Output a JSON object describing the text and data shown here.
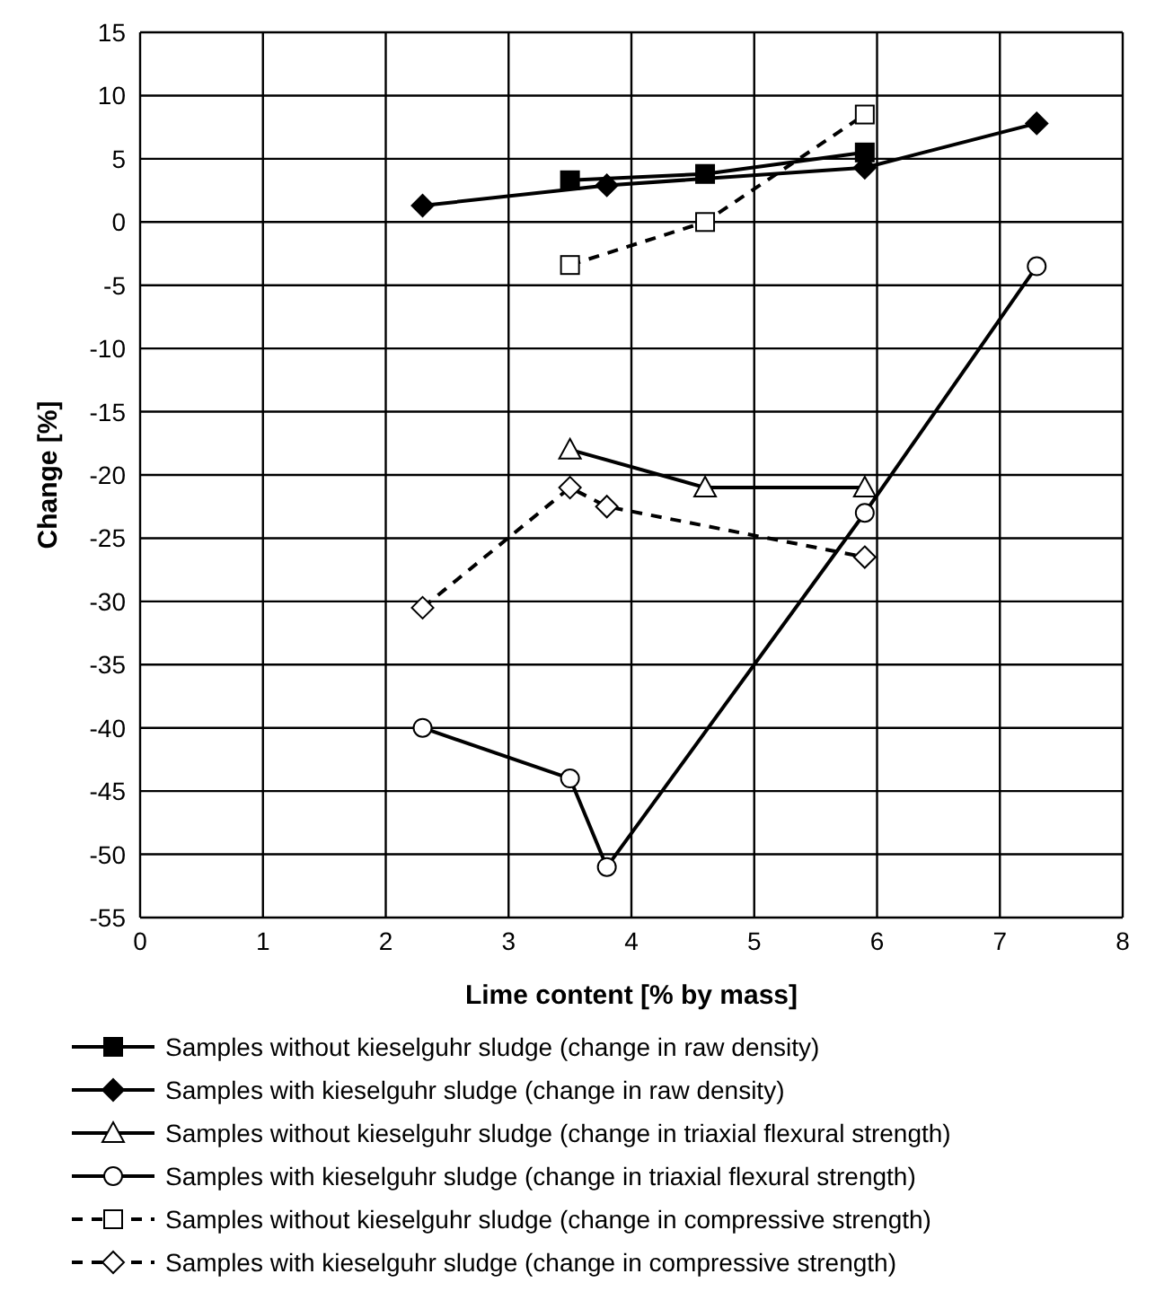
{
  "chart_data": {
    "type": "line",
    "xlabel": "Lime content [% by mass]",
    "ylabel": "Change [%]",
    "xlim": [
      0,
      8
    ],
    "xticks": [
      0,
      1,
      2,
      3,
      4,
      5,
      6,
      7,
      8
    ],
    "ylim": [
      -55,
      15
    ],
    "yticks": [
      -55,
      -50,
      -45,
      -40,
      -35,
      -30,
      -25,
      -20,
      -15,
      -10,
      -5,
      0,
      5,
      10,
      15
    ],
    "grid": true,
    "legend": "bottom",
    "series": [
      {
        "name": "Samples without kieselguhr sludge (change in raw density)",
        "color": "#000000",
        "marker": "square",
        "line_style": "solid",
        "x": [
          3.5,
          4.6,
          5.9
        ],
        "values": [
          3.3,
          3.8,
          5.5
        ]
      },
      {
        "name": "Samples with kieselguhr sludge (change in raw density)",
        "color": "#000000",
        "marker": "diamond",
        "line_style": "solid",
        "x": [
          2.3,
          3.8,
          5.9,
          7.3
        ],
        "values": [
          1.3,
          2.9,
          4.3,
          7.8
        ]
      },
      {
        "name": "Samples without kieselguhr sludge (change in triaxial flexural strength)",
        "color": "#000000",
        "marker": "triangle",
        "line_style": "solid",
        "x": [
          3.5,
          4.6,
          5.9
        ],
        "values": [
          -18,
          -21,
          -21
        ]
      },
      {
        "name": "Samples with kieselguhr sludge (change in triaxial flexural strength)",
        "color": "#000000",
        "marker": "circle",
        "line_style": "solid",
        "x": [
          2.3,
          3.5,
          3.8,
          5.9,
          7.3
        ],
        "values": [
          -40,
          -44,
          -51,
          -23,
          -3.5
        ]
      },
      {
        "name": "Samples without kieselguhr sludge (change in compressive strength)",
        "color": "#000000",
        "marker": "square",
        "line_style": "dashed",
        "x": [
          3.5,
          4.6,
          5.9
        ],
        "values": [
          -3.4,
          0,
          8.5
        ]
      },
      {
        "name": "Samples with kieselguhr sludge (change in compressive strength)",
        "color": "#000000",
        "marker": "diamond",
        "line_style": "dashed",
        "x": [
          2.3,
          3.5,
          3.8,
          5.9
        ],
        "values": [
          -30.5,
          -21,
          -22.5,
          -26.5
        ]
      }
    ]
  }
}
